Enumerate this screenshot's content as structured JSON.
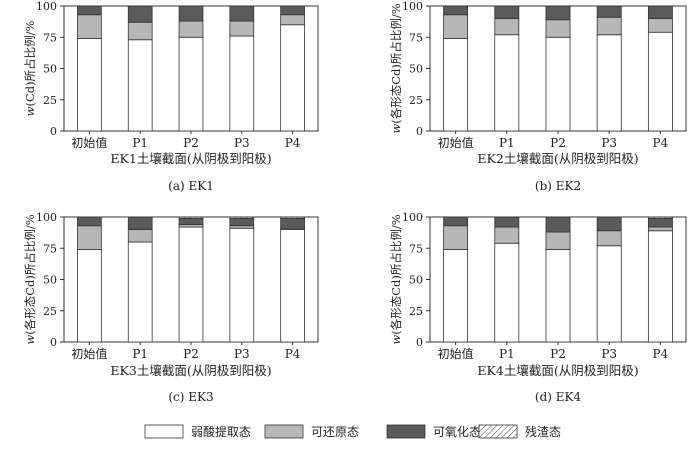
{
  "shared": {
    "ylabel_w": "w",
    "ylabel_rest_first": "(Cd)所占比例/%",
    "ylabel_rest_other": "(各形态Cd)所占比例/%",
    "yticks": [
      0,
      25,
      50,
      75,
      100
    ],
    "ylim": [
      0,
      100
    ],
    "colors": {
      "弱酸提取态": "#ffffff",
      "可还原态": "#b7b7b7",
      "可氧化态": "#5a5a5a",
      "残渣态": "hatch"
    }
  },
  "legend": {
    "items": [
      "弱酸提取态",
      "可还原态",
      "可氧化态",
      "残渣态"
    ]
  },
  "chart_data": [
    {
      "type": "bar",
      "stacked": true,
      "title": "",
      "caption": "(a) EK1",
      "xlabel": "EK1土壤截面(从阴极到阳极)",
      "ylabel": "w(Cd)所占比例/%",
      "ylim": [
        0,
        100
      ],
      "categories": [
        "初始值",
        "P1",
        "P2",
        "P3",
        "P4"
      ],
      "series": [
        {
          "name": "弱酸提取态",
          "values": [
            74,
            73,
            75,
            76,
            85
          ]
        },
        {
          "name": "可还原态",
          "values": [
            19,
            14,
            13,
            12,
            8
          ]
        },
        {
          "name": "可氧化态",
          "values": [
            7,
            13,
            12,
            12,
            7
          ]
        },
        {
          "name": "残渣态",
          "values": [
            0,
            0,
            0,
            0,
            0
          ]
        }
      ]
    },
    {
      "type": "bar",
      "stacked": true,
      "title": "",
      "caption": "(b) EK2",
      "xlabel": "EK2土壤截面(从阴极到阳极)",
      "ylabel": "w(各形态Cd)所占比例/%",
      "ylim": [
        0,
        100
      ],
      "categories": [
        "初始值",
        "P1",
        "P2",
        "P3",
        "P4"
      ],
      "series": [
        {
          "name": "弱酸提取态",
          "values": [
            74,
            77,
            75,
            77,
            79
          ]
        },
        {
          "name": "可还原态",
          "values": [
            19,
            13,
            14,
            14,
            11
          ]
        },
        {
          "name": "可氧化态",
          "values": [
            7,
            10,
            11,
            9,
            10
          ]
        },
        {
          "name": "残渣态",
          "values": [
            0,
            0,
            0,
            0,
            0
          ]
        }
      ]
    },
    {
      "type": "bar",
      "stacked": true,
      "title": "",
      "caption": "(c) EK3",
      "xlabel": "EK3土壤截面(从阴极到阳极)",
      "ylabel": "w(各形态Cd)所占比例/%",
      "ylim": [
        0,
        100
      ],
      "categories": [
        "初始值",
        "P1",
        "P2",
        "P3",
        "P4"
      ],
      "series": [
        {
          "name": "弱酸提取态",
          "values": [
            74,
            80,
            92,
            91,
            90
          ]
        },
        {
          "name": "可还原态",
          "values": [
            19,
            10,
            2,
            2,
            1
          ]
        },
        {
          "name": "可氧化态",
          "values": [
            7,
            10,
            5,
            6,
            8
          ]
        },
        {
          "name": "残渣态",
          "values": [
            0,
            0,
            1,
            1,
            1
          ]
        }
      ]
    },
    {
      "type": "bar",
      "stacked": true,
      "title": "",
      "caption": "(d) EK4",
      "xlabel": "EK4土壤截面(从阴极到阳极)",
      "ylabel": "w(各形态Cd)所占比例/%",
      "ylim": [
        0,
        100
      ],
      "categories": [
        "初始值",
        "P1",
        "P2",
        "P3",
        "P4"
      ],
      "series": [
        {
          "name": "弱酸提取态",
          "values": [
            74,
            79,
            74,
            77,
            89
          ]
        },
        {
          "name": "可还原态",
          "values": [
            19,
            13,
            14,
            12,
            3
          ]
        },
        {
          "name": "可氧化态",
          "values": [
            7,
            8,
            12,
            11,
            7
          ]
        },
        {
          "name": "残渣态",
          "values": [
            0,
            0,
            0,
            0,
            1
          ]
        }
      ]
    }
  ]
}
